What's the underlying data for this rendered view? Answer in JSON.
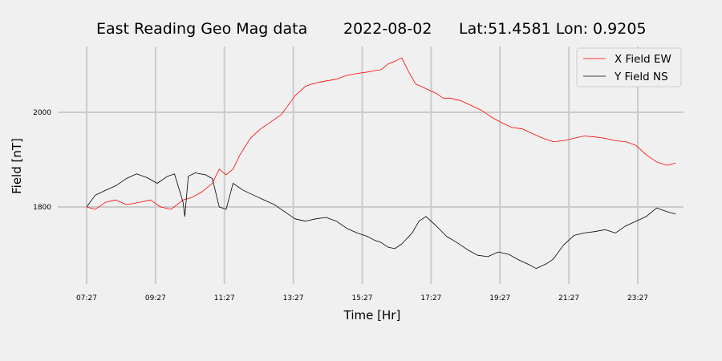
{
  "chart_data": {
    "type": "line",
    "title": {
      "station": "East Reading Geo Mag data",
      "date": "2022-08-02",
      "location": "Lat:51.4581  Lon: 0.9205"
    },
    "xlabel": "Time  [Hr]",
    "ylabel": "Field  [nT]",
    "x_unit": "hours",
    "x_ticks": [
      {
        "x": 7.45,
        "label": "07:27"
      },
      {
        "x": 9.45,
        "label": "09:27"
      },
      {
        "x": 11.45,
        "label": "11:27"
      },
      {
        "x": 13.45,
        "label": "13:27"
      },
      {
        "x": 15.45,
        "label": "15:27"
      },
      {
        "x": 17.45,
        "label": "17:27"
      },
      {
        "x": 19.45,
        "label": "19:27"
      },
      {
        "x": 21.45,
        "label": "21:27"
      },
      {
        "x": 23.45,
        "label": "23:27"
      }
    ],
    "y_ticks": [
      {
        "y": 1800,
        "label": "1800"
      },
      {
        "y": 2000,
        "label": "2000"
      }
    ],
    "xlim": [
      7.45,
      24.7
    ],
    "ylim": [
      1640,
      2140
    ],
    "grid": true,
    "legend_position": "top-right",
    "series": [
      {
        "name": "X Field EW",
        "color": "#ff0000",
        "x": [
          7.45,
          7.7,
          8.0,
          8.3,
          8.6,
          9.0,
          9.3,
          9.6,
          9.9,
          10.25,
          10.5,
          10.8,
          11.1,
          11.3,
          11.5,
          11.7,
          11.9,
          12.2,
          12.5,
          12.8,
          13.1,
          13.3,
          13.5,
          13.8,
          14.0,
          14.3,
          14.7,
          15.0,
          15.3,
          15.6,
          15.8,
          16.0,
          16.2,
          16.4,
          16.6,
          16.8,
          17.0,
          17.3,
          17.6,
          17.8,
          18.0,
          18.3,
          18.6,
          18.9,
          19.2,
          19.5,
          19.8,
          20.1,
          20.4,
          20.7,
          21.0,
          21.3,
          21.6,
          21.9,
          22.2,
          22.5,
          22.8,
          23.1,
          23.4,
          23.7,
          24.0,
          24.3,
          24.55
        ],
        "y": [
          1800,
          1795,
          1810,
          1815,
          1805,
          1810,
          1815,
          1800,
          1795,
          1815,
          1820,
          1832,
          1850,
          1880,
          1868,
          1880,
          1910,
          1945,
          1965,
          1980,
          1995,
          2015,
          2035,
          2055,
          2060,
          2065,
          2070,
          2078,
          2082,
          2085,
          2088,
          2090,
          2102,
          2108,
          2115,
          2085,
          2060,
          2050,
          2040,
          2030,
          2030,
          2025,
          2015,
          2005,
          1990,
          1978,
          1968,
          1965,
          1955,
          1945,
          1938,
          1940,
          1945,
          1950,
          1948,
          1945,
          1940,
          1938,
          1930,
          1910,
          1895,
          1888,
          1893
        ]
      },
      {
        "name": "Y Field NS",
        "color": "#000000",
        "x": [
          7.45,
          7.7,
          8.0,
          8.3,
          8.6,
          8.9,
          9.2,
          9.5,
          9.8,
          10.0,
          10.25,
          10.3,
          10.4,
          10.6,
          10.9,
          11.1,
          11.3,
          11.5,
          11.7,
          12.0,
          12.3,
          12.6,
          12.9,
          13.2,
          13.5,
          13.8,
          14.1,
          14.4,
          14.7,
          15.0,
          15.3,
          15.6,
          15.8,
          16.0,
          16.2,
          16.4,
          16.6,
          16.9,
          17.1,
          17.3,
          17.6,
          17.9,
          18.2,
          18.5,
          18.8,
          19.1,
          19.4,
          19.7,
          20.0,
          20.3,
          20.5,
          20.8,
          21.0,
          21.3,
          21.6,
          21.9,
          22.2,
          22.5,
          22.8,
          23.1,
          23.4,
          23.7,
          24.0,
          24.3,
          24.55
        ],
        "y": [
          1800,
          1825,
          1835,
          1845,
          1860,
          1870,
          1862,
          1850,
          1865,
          1870,
          1810,
          1780,
          1865,
          1872,
          1868,
          1860,
          1800,
          1795,
          1850,
          1835,
          1825,
          1815,
          1805,
          1790,
          1775,
          1770,
          1775,
          1778,
          1770,
          1755,
          1745,
          1738,
          1730,
          1725,
          1715,
          1712,
          1722,
          1745,
          1770,
          1780,
          1760,
          1738,
          1725,
          1710,
          1698,
          1695,
          1705,
          1700,
          1688,
          1678,
          1670,
          1680,
          1690,
          1720,
          1740,
          1745,
          1748,
          1752,
          1745,
          1760,
          1770,
          1780,
          1798,
          1790,
          1785
        ]
      }
    ]
  }
}
